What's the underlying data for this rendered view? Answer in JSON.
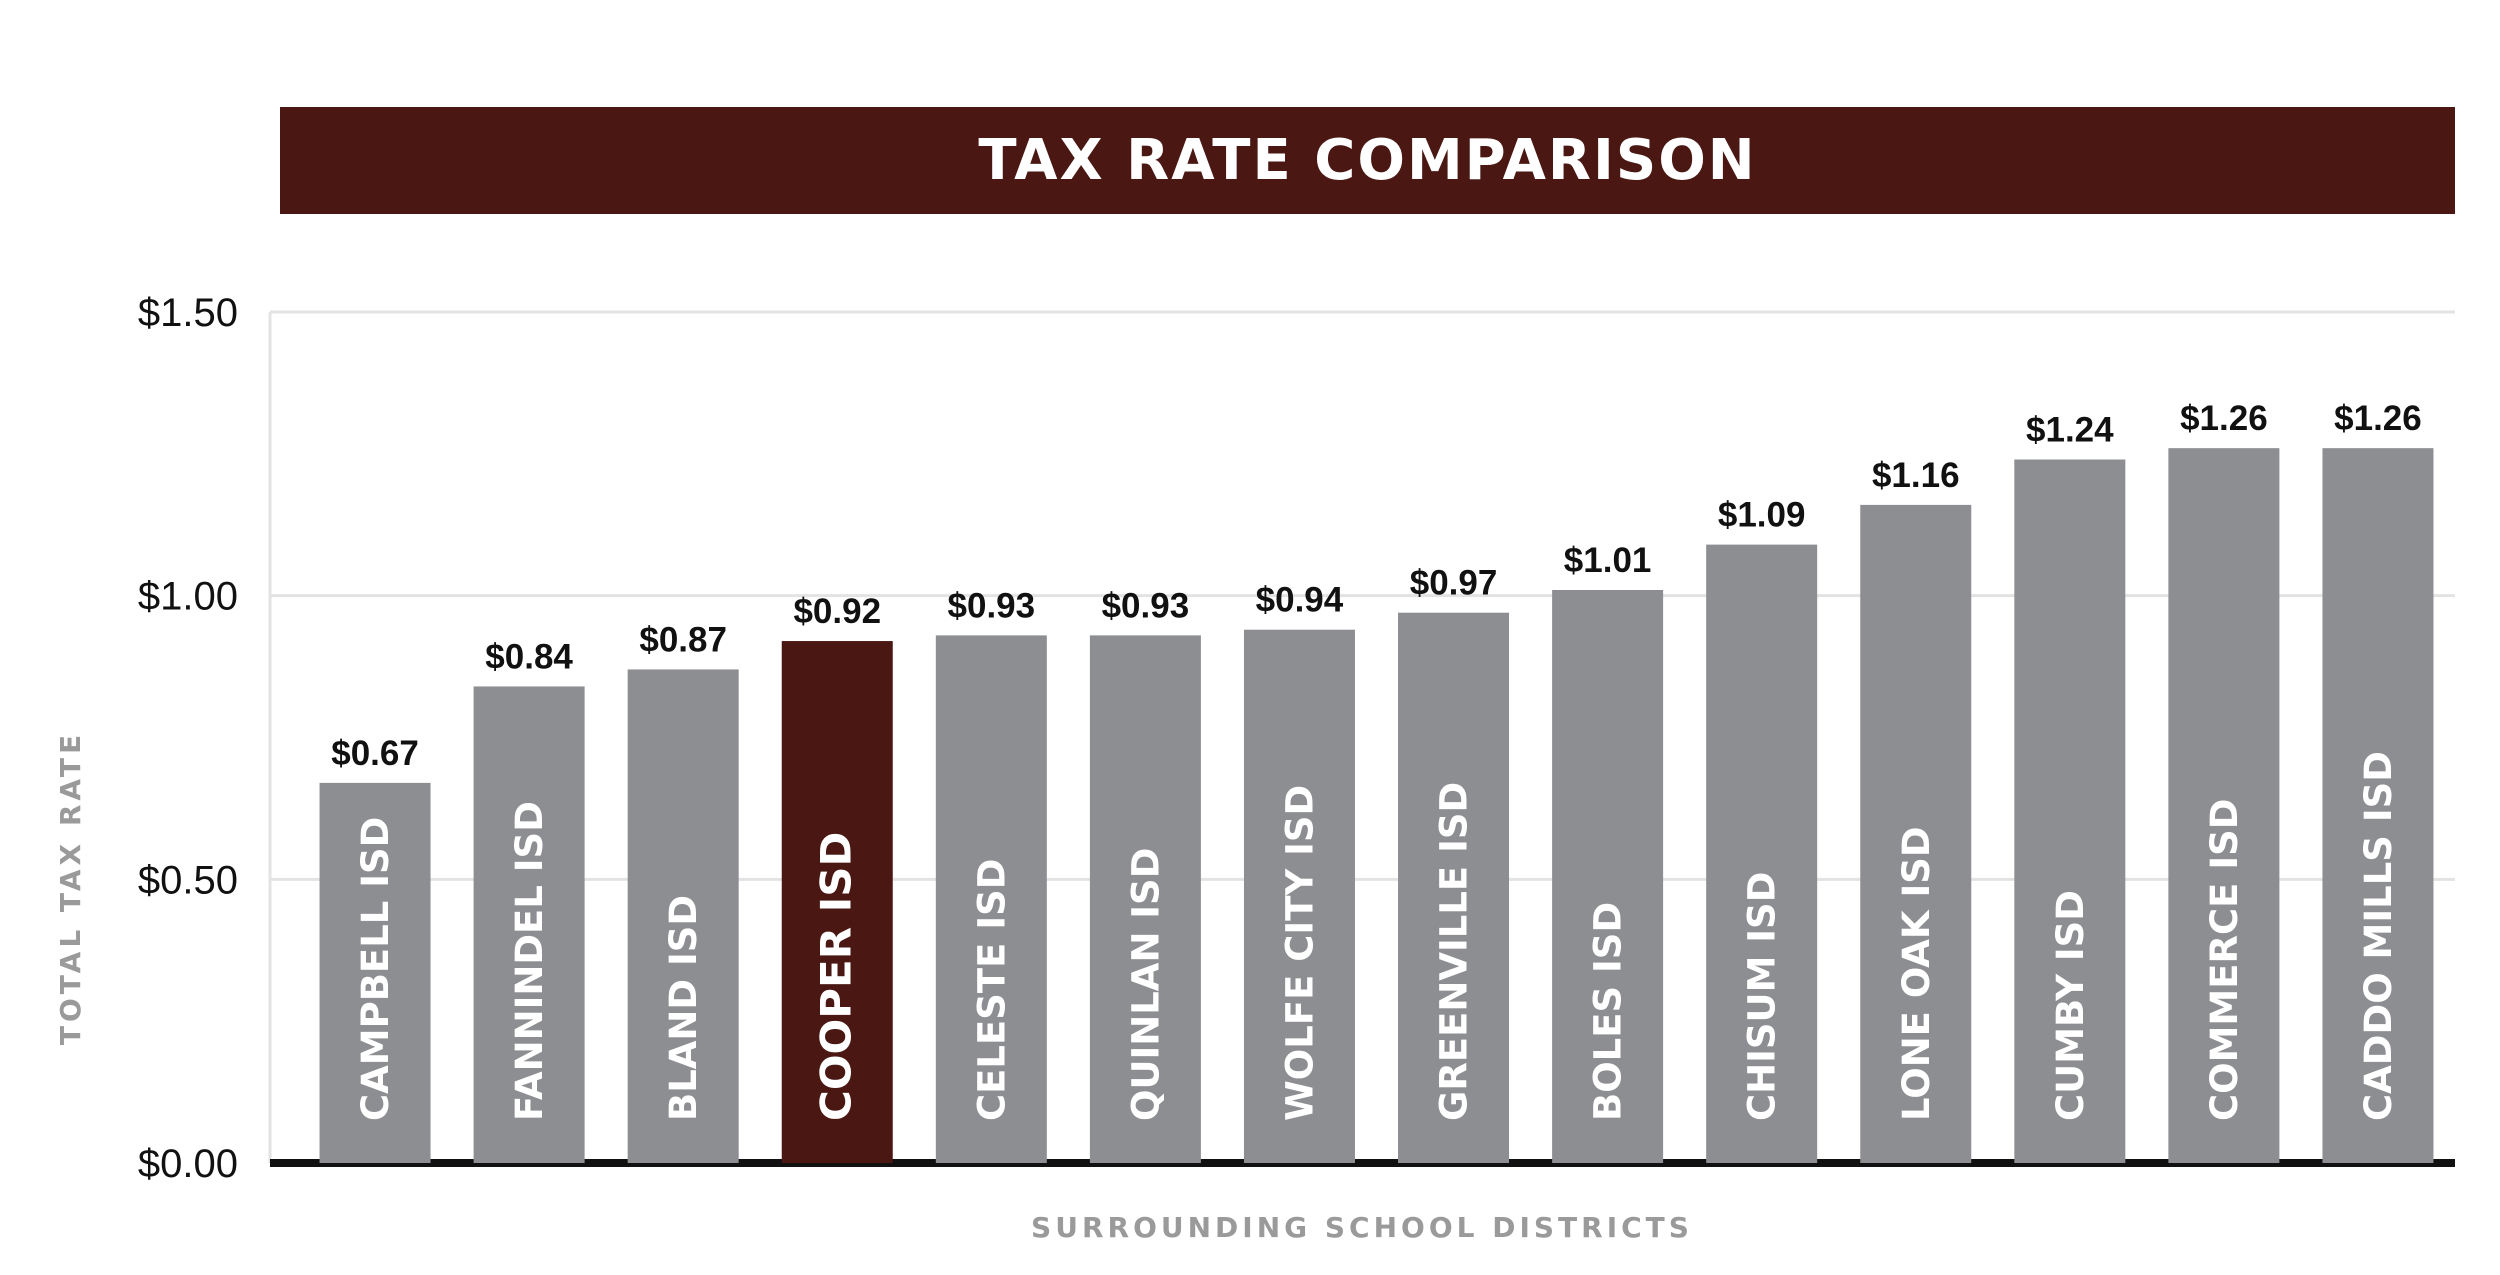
{
  "title": "TAX RATE COMPARISON",
  "colors": {
    "banner": "#4a1713",
    "bar": "#8d8e92",
    "highlight": "#4a1713",
    "grid": "#e3e3e3",
    "baseline": "#111111"
  },
  "chart_data": {
    "type": "bar",
    "title": "TAX RATE COMPARISON",
    "xlabel": "SURROUNDING SCHOOL DISTRICTS",
    "ylabel": "TOTAL TAX RATE",
    "ylim": [
      0,
      1.5
    ],
    "yticks": [
      0,
      0.5,
      1.0,
      1.5
    ],
    "ytick_labels": [
      "$0.00",
      "$0.50",
      "$1.00",
      "$1.50"
    ],
    "grid": true,
    "highlight": "COOPER ISD",
    "categories": [
      "CAMPBELL ISD",
      "FANNINDEL ISD",
      "BLAND ISD",
      "COOPER ISD",
      "CELESTE ISD",
      "QUINLAN ISD",
      "WOLFE CITY ISD",
      "GREENVILLE ISD",
      "BOLES ISD",
      "CHISUM ISD",
      "LONE OAK ISD",
      "CUMBY ISD",
      "COMMERCE ISD",
      "CADDO MILLS ISD"
    ],
    "values": [
      0.67,
      0.84,
      0.87,
      0.92,
      0.93,
      0.93,
      0.94,
      0.97,
      1.01,
      1.09,
      1.16,
      1.24,
      1.26,
      1.26
    ],
    "value_labels": [
      "$0.67",
      "$0.84",
      "$0.87",
      "$0.92",
      "$0.93",
      "$0.93",
      "$0.94",
      "$0.97",
      "$1.01",
      "$1.09",
      "$1.16",
      "$1.24",
      "$1.26",
      "$1.26"
    ]
  }
}
